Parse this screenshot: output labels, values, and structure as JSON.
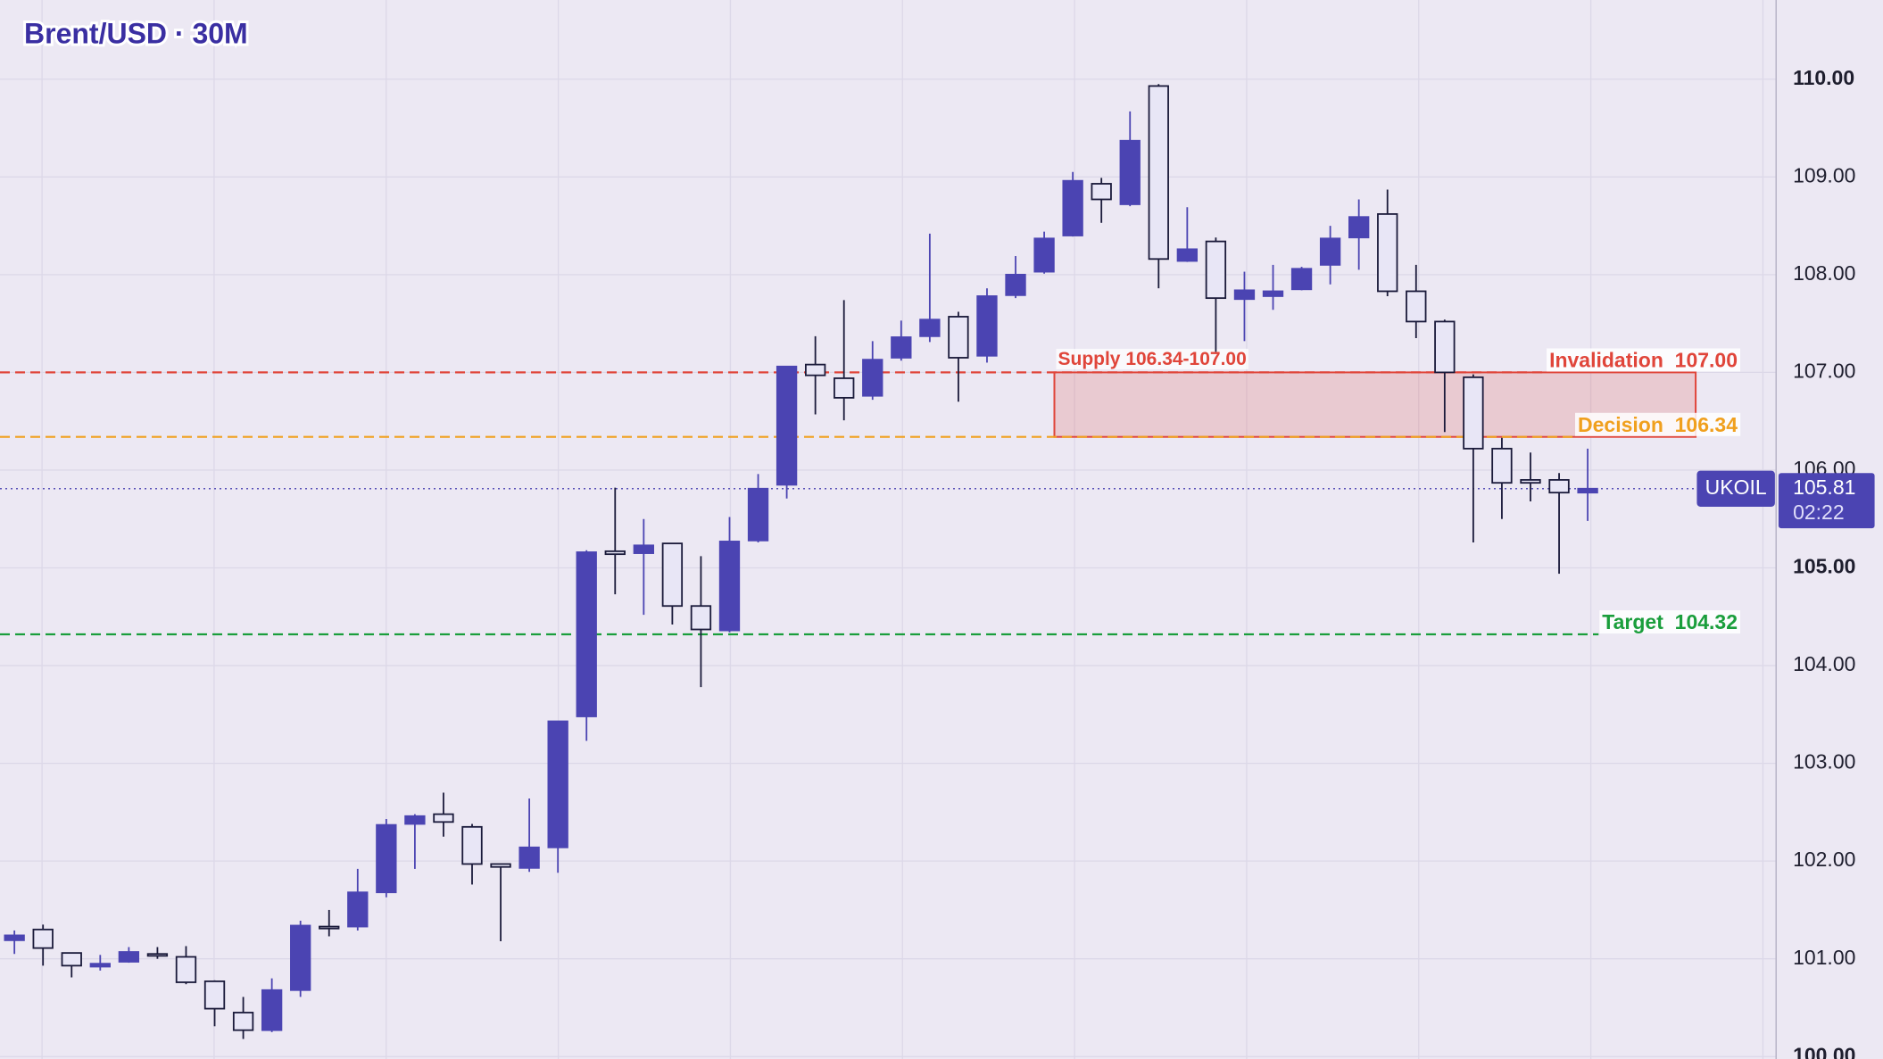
{
  "chart_data": {
    "type": "candlestick",
    "title": "Brent/USD · 30M",
    "open": [
      101.19,
      101.3,
      101.06,
      100.92,
      100.97,
      101.05,
      101.02,
      100.77,
      100.45,
      100.27,
      100.68,
      101.33,
      101.33,
      101.68,
      102.38,
      102.48,
      102.35,
      101.97,
      101.93,
      102.14,
      103.48,
      105.17,
      105.15,
      105.25,
      104.61,
      104.36,
      105.28,
      105.85,
      107.08,
      106.94,
      106.76,
      107.15,
      107.37,
      107.57,
      107.17,
      107.79,
      108.03,
      108.4,
      108.93,
      108.72,
      109.93,
      108.14,
      108.34,
      107.75,
      107.78,
      107.85,
      108.1,
      108.38,
      108.62,
      107.83,
      107.52,
      106.95,
      106.22,
      105.9,
      105.9,
      105.77
    ],
    "high": [
      101.29,
      101.35,
      101.06,
      101.04,
      101.12,
      101.12,
      101.13,
      100.78,
      100.61,
      100.8,
      101.39,
      101.5,
      101.92,
      102.43,
      102.48,
      102.7,
      102.38,
      101.97,
      102.64,
      103.43,
      105.18,
      105.82,
      105.5,
      105.25,
      105.12,
      105.52,
      105.96,
      107.06,
      107.37,
      107.74,
      107.32,
      107.53,
      108.42,
      107.62,
      107.86,
      108.19,
      108.44,
      109.05,
      108.99,
      109.67,
      109.95,
      108.69,
      108.38,
      108.03,
      108.1,
      108.08,
      108.5,
      108.77,
      108.87,
      108.1,
      107.54,
      106.98,
      106.33,
      106.18,
      105.97,
      106.22
    ],
    "low": [
      101.05,
      100.93,
      100.81,
      100.88,
      100.96,
      101.0,
      100.74,
      100.31,
      100.18,
      100.25,
      100.61,
      101.23,
      101.29,
      101.63,
      101.92,
      102.25,
      101.76,
      101.18,
      101.89,
      101.88,
      103.23,
      104.73,
      104.52,
      104.42,
      103.78,
      104.34,
      105.26,
      105.71,
      106.57,
      106.51,
      106.72,
      107.12,
      107.31,
      106.7,
      107.1,
      107.76,
      108.01,
      108.39,
      108.53,
      108.7,
      107.86,
      108.13,
      107.21,
      107.32,
      107.64,
      107.84,
      107.9,
      108.05,
      107.78,
      107.35,
      106.39,
      105.26,
      105.5,
      105.68,
      104.94,
      105.48
    ],
    "close": [
      101.24,
      101.11,
      100.93,
      100.95,
      101.07,
      101.03,
      100.76,
      100.49,
      100.27,
      100.68,
      101.34,
      101.31,
      101.68,
      102.37,
      102.46,
      102.4,
      101.97,
      101.94,
      102.14,
      103.43,
      105.16,
      105.14,
      105.23,
      104.61,
      104.37,
      105.27,
      105.81,
      107.06,
      106.97,
      106.74,
      107.13,
      107.36,
      107.54,
      107.15,
      107.78,
      108.0,
      108.37,
      108.96,
      108.77,
      109.37,
      108.16,
      108.26,
      107.76,
      107.84,
      107.83,
      108.06,
      108.37,
      108.59,
      107.83,
      107.52,
      107.0,
      106.22,
      105.87,
      105.87,
      105.77,
      105.81
    ],
    "up_color": "#4b44b2",
    "down_color": "#e8e6f6",
    "ylim": [
      99.975,
      110.81
    ],
    "yticks": [
      {
        "value": 100,
        "label": "100.00"
      },
      {
        "value": 101,
        "label": "101.00"
      },
      {
        "value": 102,
        "label": "102.00"
      },
      {
        "value": 103,
        "label": "103.00"
      },
      {
        "value": 104,
        "label": "104.00"
      },
      {
        "value": 105,
        "label": "105.00"
      },
      {
        "value": 106,
        "label": "106.00"
      },
      {
        "value": 107,
        "label": "107.00"
      },
      {
        "value": 108,
        "label": "108.00"
      },
      {
        "value": 109,
        "label": "109.00"
      },
      {
        "value": 110,
        "label": "110.00"
      }
    ],
    "grid": true,
    "zone": {
      "label": "Supply 106.34-107.00",
      "low": 106.34,
      "high": 107.0,
      "color": "#e0453a"
    },
    "levels": [
      {
        "label": "Invalidation  107.00",
        "value": 107.0,
        "color": "#e0453a"
      },
      {
        "label": "Decision  106.34",
        "value": 106.34,
        "color": "#f0a01e"
      },
      {
        "label": "Target  104.32",
        "value": 104.32,
        "color": "#1a9e3c"
      }
    ],
    "current": {
      "symbol": "UKOIL",
      "price": 105.81,
      "countdown": "02:22",
      "color": "#4b44b2"
    }
  }
}
